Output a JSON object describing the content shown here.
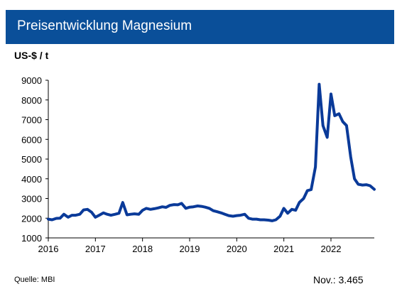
{
  "header": {
    "title": "Preisentwicklung Magnesium"
  },
  "footer": {
    "source": "Quelle: MBI",
    "note": "Nov.: 3.465"
  },
  "chart_data": {
    "type": "line",
    "title": "Preisentwicklung Magnesium",
    "ylabel": "US-$ / t",
    "xlabel": "",
    "ylim": [
      1000,
      9000
    ],
    "xlim": [
      2016,
      2022.92
    ],
    "yticks": [
      1000,
      2000,
      3000,
      4000,
      5000,
      6000,
      7000,
      8000,
      9000
    ],
    "xticks": [
      "2016",
      "2017",
      "2018",
      "2019",
      "2020",
      "2021",
      "2022"
    ],
    "grid": false,
    "line_color": "#0a3a99",
    "series": [
      {
        "x": [
          2016.0,
          2016.08,
          2016.17,
          2016.25,
          2016.33,
          2016.42,
          2016.5,
          2016.58,
          2016.67,
          2016.75,
          2016.83,
          2016.92,
          2017.0,
          2017.08,
          2017.17,
          2017.25,
          2017.33,
          2017.42,
          2017.5,
          2017.58,
          2017.67,
          2017.75,
          2017.83,
          2017.92,
          2018.0,
          2018.08,
          2018.17,
          2018.25,
          2018.33,
          2018.42,
          2018.5,
          2018.58,
          2018.67,
          2018.75,
          2018.83,
          2018.92,
          2019.0,
          2019.08,
          2019.17,
          2019.25,
          2019.33,
          2019.42,
          2019.5,
          2019.58,
          2019.67,
          2019.75,
          2019.83,
          2019.92,
          2020.0,
          2020.08,
          2020.17,
          2020.25,
          2020.33,
          2020.42,
          2020.5,
          2020.58,
          2020.67,
          2020.75,
          2020.83,
          2020.92,
          2021.0,
          2021.08,
          2021.17,
          2021.25,
          2021.33,
          2021.42,
          2021.5,
          2021.58,
          2021.67,
          2021.75,
          2021.83,
          2021.92,
          2022.0,
          2022.08,
          2022.17,
          2022.25,
          2022.33,
          2022.42,
          2022.5,
          2022.58,
          2022.67,
          2022.75,
          2022.83,
          2022.92
        ],
        "values": [
          1950,
          1920,
          1990,
          2000,
          2200,
          2050,
          2150,
          2150,
          2200,
          2420,
          2450,
          2300,
          2050,
          2150,
          2270,
          2200,
          2150,
          2200,
          2250,
          2800,
          2170,
          2200,
          2220,
          2200,
          2400,
          2500,
          2450,
          2480,
          2520,
          2580,
          2550,
          2650,
          2690,
          2680,
          2750,
          2500,
          2560,
          2580,
          2620,
          2600,
          2560,
          2500,
          2380,
          2330,
          2270,
          2200,
          2130,
          2100,
          2130,
          2150,
          2200,
          2000,
          1950,
          1950,
          1920,
          1920,
          1900,
          1870,
          1920,
          2100,
          2500,
          2250,
          2450,
          2400,
          2800,
          3000,
          3400,
          3450,
          4600,
          8800,
          6700,
          6100,
          8300,
          7200,
          7300,
          6900,
          6700,
          5100,
          4000,
          3720,
          3680,
          3700,
          3650,
          3465
        ]
      }
    ]
  }
}
